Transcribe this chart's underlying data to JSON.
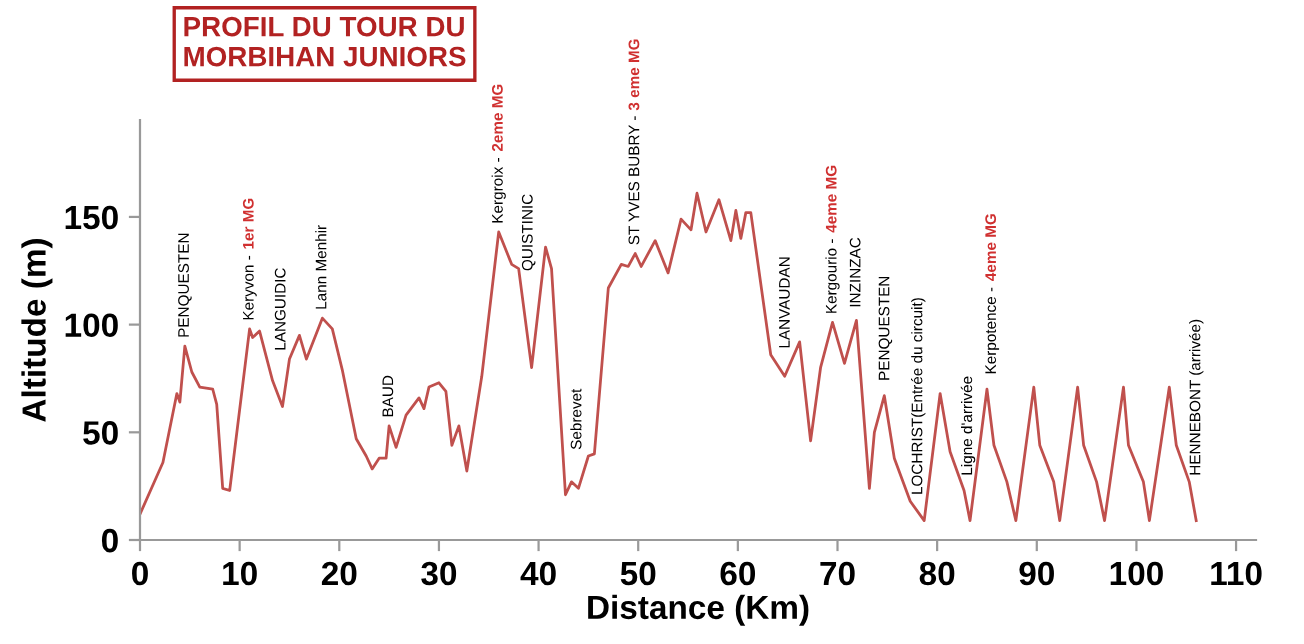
{
  "chart_data": {
    "type": "line",
    "title": "PROFIL DU TOUR DU\nMORBIHAN JUNIORS",
    "xlabel": "Distance (Km)",
    "ylabel": "Altitude (m)",
    "x": [
      0,
      2.3,
      3.7,
      4,
      4.5,
      5.2,
      6,
      7.3,
      7.7,
      8.3,
      9,
      11,
      11.3,
      12,
      13.3,
      14.3,
      15,
      16,
      16.7,
      18.3,
      19.3,
      20.3,
      21.7,
      22.7,
      23.3,
      24,
      24.7,
      25,
      25.7,
      26.7,
      28,
      28.5,
      29,
      30,
      30.7,
      31.3,
      32,
      32.8,
      34.3,
      36,
      37.3,
      38,
      39.3,
      40.7,
      41.3,
      42.7,
      43.3,
      44,
      45,
      45.6,
      47,
      48.3,
      49,
      49.7,
      50.3,
      51.7,
      53,
      54.3,
      55.3,
      55.9,
      56.8,
      58.1,
      59.3,
      59.8,
      60.3,
      60.8,
      61.3,
      63.3,
      64.7,
      66.2,
      67.3,
      68.3,
      69.5,
      70.7,
      71.9,
      73.2,
      73.7,
      74.7,
      75.7,
      77.3,
      78.7,
      80.3,
      81.3,
      82.7,
      83.3,
      85,
      85.7,
      87,
      87.9,
      89.7,
      90.3,
      91.7,
      92.3,
      94.1,
      94.7,
      96,
      96.8,
      98.7,
      99.2,
      100.7,
      101.3,
      103.3,
      104,
      105.3,
      106
    ],
    "series": [
      {
        "color": "#c0504d",
        "values": [
          12,
          36,
          68,
          64,
          90,
          78,
          71,
          70,
          63,
          24,
          23,
          98,
          94,
          97,
          74,
          62,
          84,
          95,
          84,
          103,
          98,
          79,
          47,
          39,
          33,
          38,
          38,
          53,
          43,
          58,
          66,
          61,
          71,
          73,
          69,
          44,
          53,
          32,
          76,
          143,
          128,
          126,
          80,
          136,
          126,
          21,
          27,
          24,
          39,
          40,
          117,
          128,
          127,
          133,
          127,
          139,
          124,
          149,
          144,
          161,
          143,
          158,
          139,
          153,
          140,
          152,
          152,
          86,
          76,
          92,
          46,
          80,
          101,
          82,
          102,
          24,
          50,
          67,
          38,
          18,
          9,
          68,
          41,
          23,
          9,
          70,
          44,
          27,
          9,
          71,
          44,
          27,
          9,
          71,
          44,
          27,
          9,
          71,
          44,
          27,
          9,
          71,
          44,
          27,
          9
        ]
      }
    ],
    "xlim": [
      0,
      112
    ],
    "ylim": [
      0,
      195
    ],
    "xticks": [
      0,
      10,
      20,
      30,
      40,
      50,
      60,
      70,
      80,
      90,
      100,
      110
    ],
    "yticks": [
      0,
      50,
      100,
      150
    ],
    "grid": false,
    "marker": "none",
    "line_style": "solid",
    "annotations": [
      {
        "text": "PENQUESTEN",
        "x": 4.5,
        "y": 90
      },
      {
        "text": "Keryvon -",
        "x": 11,
        "y": 98
      },
      "1er MG",
      {
        "text": "LANGUIDIC",
        "x": 14.2,
        "y": 84
      },
      {
        "text": "Lann Menhir",
        "x": 18.3,
        "y": 103
      },
      {
        "text": "BAUD",
        "x": 25,
        "y": 53
      },
      {
        "text": "Kergroix -",
        "x": 36,
        "y": 143
      },
      "2eme MG",
      {
        "text": "QUISTINIC",
        "x": 39,
        "y": 121
      },
      {
        "text": "Sebrevet",
        "x": 43.9,
        "y": 38
      },
      {
        "text": "ST YVES BUBRY -",
        "x": 49.7,
        "y": 133
      },
      "3 eme MG",
      {
        "text": "LANVAUDAN",
        "x": 64.8,
        "y": 85
      },
      {
        "text": "Kergourio -",
        "x": 69.5,
        "y": 101
      },
      "4eme MG",
      {
        "text": "INZINZAC",
        "x": 71.9,
        "y": 104
      },
      {
        "text": "PENQUESTEN",
        "x": 74.8,
        "y": 70
      },
      {
        "text": "LOCHRIST(Entrée du circuit)",
        "x": 78.1,
        "y": 17
      },
      {
        "text": "Ligne d'arrivée",
        "x": 83.1,
        "y": 26
      },
      {
        "text": "Kerpotence -",
        "x": 85.5,
        "y": 73
      },
      "4eme MG",
      {
        "text": "HENNEBONT (arrivée)",
        "x": 106,
        "y": 26
      }
    ]
  }
}
